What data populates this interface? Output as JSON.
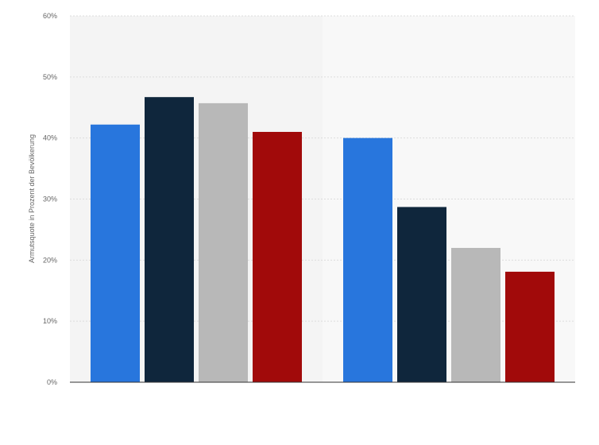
{
  "chart_data": {
    "type": "bar",
    "title": "",
    "xlabel": "",
    "ylabel": "Armutsquote in Prozent der Bevölkerung",
    "ylim": [
      0,
      60
    ],
    "yticks": [
      0,
      10,
      20,
      30,
      40,
      50,
      60
    ],
    "ytick_suffix": "%",
    "grid": true,
    "categories": [
      "",
      ""
    ],
    "series": [
      {
        "color": "#2876dd",
        "values": [
          42.2,
          40.0
        ]
      },
      {
        "color": "#0f263c",
        "values": [
          46.7,
          28.7
        ]
      },
      {
        "color": "#b8b8b8",
        "values": [
          45.7,
          22.0
        ]
      },
      {
        "color": "#a10a0a",
        "values": [
          41.0,
          18.1
        ]
      }
    ]
  }
}
